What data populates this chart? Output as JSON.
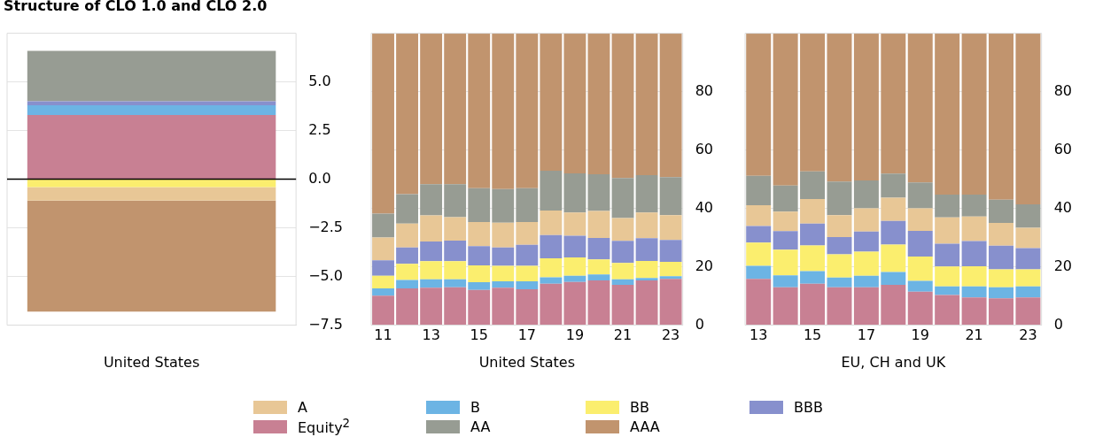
{
  "chart_data": [
    {
      "type": "bar",
      "title": "Structure of CLO 1.0 and CLO 2.0",
      "xlabel": "United States",
      "categories": [
        null
      ],
      "stacked": true,
      "grid": "y",
      "legend": "bottom",
      "ylim": [
        -7.5,
        7.5
      ],
      "yticks": [
        {
          "value": -7.5,
          "label": "−7.5"
        },
        {
          "value": -5,
          "label": "−5.0"
        },
        {
          "value": -2.5,
          "label": "−2.5"
        },
        {
          "value": 0,
          "label": "0.0"
        },
        {
          "value": 2.5,
          "label": "2.5"
        },
        {
          "value": 5,
          "label": "5.0"
        }
      ],
      "ref_lines": [
        {
          "axis": "y",
          "value": 0,
          "color": "#000000"
        }
      ],
      "series": [
        {
          "name": "Equity$^{2}$",
          "color": "#c88093",
          "values": [
            3.3
          ]
        },
        {
          "name": "B",
          "color": "#6cb4e4",
          "values": [
            0.5
          ]
        },
        {
          "name": "BB",
          "color": "#fbee6e",
          "values": [
            -0.4
          ]
        },
        {
          "name": "BBB",
          "color": "#8790cd",
          "values": [
            0.2
          ]
        },
        {
          "name": "A",
          "color": "#e8c796",
          "values": [
            -0.7
          ]
        },
        {
          "name": "AA",
          "color": "#979c93",
          "values": [
            2.6
          ]
        },
        {
          "name": "AAA",
          "color": "#c1946e",
          "values": [
            -5.7
          ]
        }
      ]
    },
    {
      "type": "bar",
      "xlabel": "United States",
      "categories": [
        "11",
        null,
        "13",
        null,
        "15",
        null,
        "17",
        null,
        "19",
        null,
        "21",
        null,
        "23"
      ],
      "stacked": true,
      "grid": "y",
      "ylim": [
        0,
        100
      ],
      "yticks": [
        0,
        20,
        40,
        60,
        80
      ],
      "series": [
        {
          "color": "#c88093",
          "values": [
            10.1,
            12.6,
            12.8,
            13.0,
            12.1,
            12.8,
            12.3,
            14.2,
            14.8,
            15.3,
            13.8,
            15.3,
            15.9
          ]
        },
        {
          "color": "#6cb4e4",
          "values": [
            2.5,
            2.9,
            2.9,
            2.7,
            2.6,
            2.2,
            2.7,
            2.2,
            2.1,
            2.1,
            1.9,
            0.9,
            0.9
          ]
        },
        {
          "color": "#fbee6e",
          "values": [
            4.3,
            5.5,
            6.2,
            6.2,
            5.8,
            5.3,
            5.3,
            6.5,
            6.3,
            5.1,
            5.6,
            5.8,
            4.9
          ]
        },
        {
          "color": "#8790cd",
          "values": [
            5.3,
            5.6,
            6.8,
            7.1,
            6.6,
            6.3,
            7.2,
            8.0,
            7.4,
            7.4,
            7.6,
            7.8,
            7.5
          ]
        },
        {
          "color": "#e8c796",
          "values": [
            7.8,
            8.2,
            8.9,
            8.0,
            8.2,
            8.5,
            7.8,
            8.4,
            8.0,
            9.2,
            7.8,
            8.8,
            8.5
          ]
        },
        {
          "color": "#979c93",
          "values": [
            8.2,
            10.1,
            10.7,
            11.3,
            11.6,
            11.5,
            11.6,
            13.6,
            13.4,
            12.6,
            13.7,
            12.8,
            13.0
          ]
        },
        {
          "color": "#c1946e",
          "values": [
            61.8,
            55.1,
            51.7,
            51.7,
            53.1,
            53.4,
            53.1,
            47.1,
            48.0,
            48.3,
            49.6,
            48.6,
            49.3
          ]
        }
      ]
    },
    {
      "type": "bar",
      "xlabel": "EU, CH and UK",
      "categories": [
        "13",
        null,
        "15",
        null,
        "17",
        null,
        "19",
        null,
        "21",
        null,
        "23"
      ],
      "stacked": true,
      "grid": "y",
      "ylim": [
        0,
        100
      ],
      "yticks": [
        0,
        20,
        40,
        60,
        80
      ],
      "series": [
        {
          "color": "#c88093",
          "values": [
            15.9,
            13.0,
            14.2,
            13.0,
            13.0,
            13.8,
            11.5,
            10.3,
            9.5,
            9.2,
            9.5
          ]
        },
        {
          "color": "#6cb4e4",
          "values": [
            4.4,
            4.1,
            4.3,
            3.3,
            3.9,
            4.4,
            3.7,
            3.0,
            3.8,
            3.8,
            3.8
          ]
        },
        {
          "color": "#fbee6e",
          "values": [
            8.0,
            8.8,
            8.8,
            8.0,
            8.3,
            9.4,
            8.3,
            6.8,
            6.9,
            6.1,
            5.8
          ]
        },
        {
          "color": "#8790cd",
          "values": [
            5.7,
            6.3,
            7.5,
            5.9,
            6.9,
            8.1,
            8.8,
            7.8,
            8.6,
            8.1,
            7.3
          ]
        },
        {
          "color": "#e8c796",
          "values": [
            7.1,
            6.7,
            8.4,
            7.5,
            7.9,
            8.0,
            7.7,
            9.0,
            8.4,
            7.8,
            7.0
          ]
        },
        {
          "color": "#979c93",
          "values": [
            10.1,
            8.9,
            9.5,
            11.5,
            9.6,
            8.2,
            8.9,
            7.8,
            7.5,
            8.0,
            8.0
          ]
        },
        {
          "color": "#c1946e",
          "values": [
            48.8,
            52.2,
            47.3,
            50.8,
            50.4,
            48.1,
            51.1,
            55.3,
            55.3,
            57.0,
            58.6
          ]
        }
      ]
    }
  ]
}
